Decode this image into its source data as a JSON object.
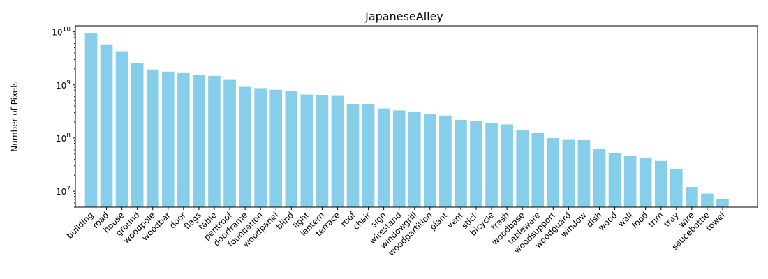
{
  "chart_data": {
    "type": "bar",
    "title": "JapaneseAlley",
    "xlabel": "",
    "ylabel": "Number of Pixels",
    "y_scale": "log",
    "ylim": [
      5000000,
      13000000000
    ],
    "bar_color": "#87ceeb",
    "grid": false,
    "y_ticks": [
      {
        "value": 10000000,
        "label": "10^7"
      },
      {
        "value": 100000000,
        "label": "10^8"
      },
      {
        "value": 1000000000,
        "label": "10^9"
      },
      {
        "value": 10000000000,
        "label": "10^10"
      }
    ],
    "categories": [
      "building",
      "road",
      "house",
      "ground",
      "woodpole",
      "woodbar",
      "door",
      "flags",
      "table",
      "pentroof",
      "doorframe",
      "foundation",
      "woodpanel",
      "blind",
      "light",
      "lantern",
      "terrace",
      "roof",
      "chair",
      "sign",
      "wirestand",
      "windowgrill",
      "woodpartition",
      "plant",
      "vent",
      "stick",
      "bicycle",
      "trash",
      "woodbase",
      "tableware",
      "woodsupport",
      "woodguard",
      "window",
      "dish",
      "wood",
      "wall",
      "food",
      "trim",
      "tray",
      "wire",
      "saucebottle",
      "towel"
    ],
    "values": [
      9300000000,
      5800000000,
      4300000000,
      2600000000,
      1950000000,
      1780000000,
      1720000000,
      1550000000,
      1480000000,
      1280000000,
      920000000,
      870000000,
      810000000,
      780000000,
      660000000,
      650000000,
      640000000,
      440000000,
      440000000,
      360000000,
      330000000,
      310000000,
      280000000,
      265000000,
      220000000,
      210000000,
      190000000,
      180000000,
      140000000,
      125000000,
      100000000,
      95000000,
      92000000,
      62000000,
      52000000,
      46000000,
      43000000,
      37000000,
      26000000,
      12000000,
      9000000,
      7200000
    ]
  }
}
